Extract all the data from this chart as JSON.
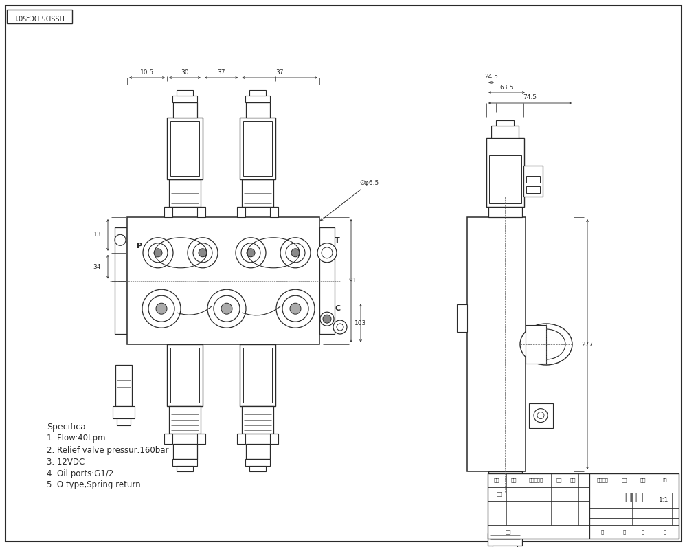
{
  "title_box": "HSSD5 DC-501",
  "view_label": "外形图",
  "scale": "1:1",
  "specs": [
    "Specifica",
    "1. Flow:40Lpm",
    "2. Relief valve pressur:160bar",
    "3. 12VDC",
    "4. Oil ports:G1/2",
    "5. O type,Spring return."
  ],
  "dim_top_left": [
    "10.5",
    "30",
    "37",
    "37"
  ],
  "dim_top_right": [
    "74.5",
    "63.5",
    "24.5"
  ],
  "dim_right_label": "277",
  "dim_left_13": "13",
  "dim_left_34": "34",
  "dim_right_91": "91",
  "dim_right_103": "103",
  "dim_hole": "∅φ6.5",
  "port_P": "P",
  "port_T": "T",
  "port_C": "C",
  "bg_color": "#ffffff",
  "line_color": "#2a2a2a",
  "line_width": 0.9,
  "thin_line": 0.5
}
